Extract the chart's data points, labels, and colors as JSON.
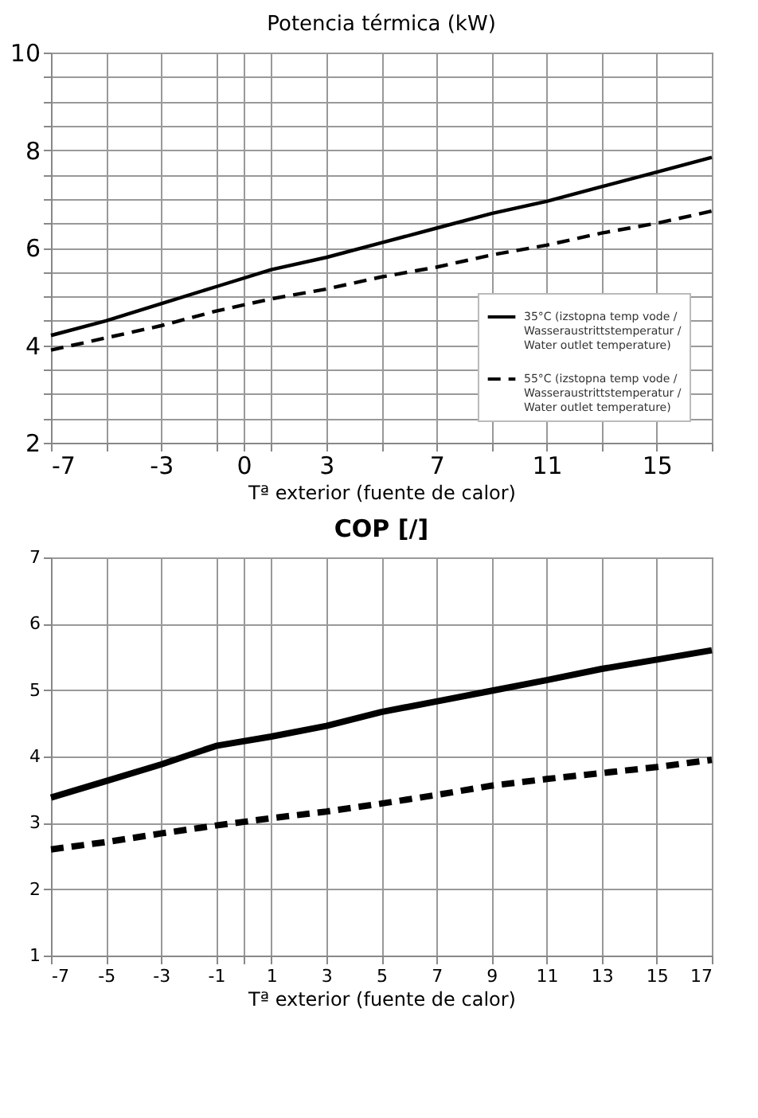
{
  "chart_data": [
    {
      "type": "line",
      "title": "Potencia térmica (kW)",
      "xlabel": "Tª exterior (fuente de calor)",
      "x": [
        -7,
        -5,
        -3,
        -1,
        1,
        3,
        5,
        7,
        9,
        11,
        13,
        15,
        17
      ],
      "series": [
        {
          "name": "35°C (izstopna temp vode /\nWasseraustrittstemperatur /\nWater outlet temperature)",
          "color": "#000000",
          "line_style": "solid",
          "values": [
            4.2,
            4.5,
            4.85,
            5.2,
            5.55,
            5.8,
            6.1,
            6.4,
            6.7,
            6.95,
            7.25,
            7.55,
            7.85
          ]
        },
        {
          "name": "55°C (izstopna temp vode /\nWasseraustrittstemperatur /\nWater outlet temperature)",
          "color": "#000000",
          "line_style": "dashed",
          "values": [
            3.9,
            4.15,
            4.4,
            4.7,
            4.95,
            5.15,
            5.4,
            5.6,
            5.85,
            6.05,
            6.3,
            6.5,
            6.75
          ]
        }
      ],
      "xlim": [
        -7,
        17
      ],
      "xticks": [
        -7,
        {
          "value": -5,
          "label": null
        },
        -3,
        {
          "value": -1,
          "label": null
        },
        0,
        {
          "value": 1,
          "label": null
        },
        3,
        {
          "value": 5,
          "label": null
        },
        7,
        {
          "value": 9,
          "label": null
        },
        11,
        {
          "value": 13,
          "label": null
        },
        15,
        {
          "value": 17,
          "label": null
        }
      ],
      "ylim": [
        2,
        10
      ],
      "yticks": [
        2,
        {
          "value": 2.5,
          "label": null
        },
        {
          "value": 3,
          "label": null
        },
        {
          "value": 3.5,
          "label": null
        },
        4,
        {
          "value": 4.5,
          "label": null
        },
        {
          "value": 5,
          "label": null
        },
        {
          "value": 5.5,
          "label": null
        },
        6,
        {
          "value": 6.5,
          "label": null
        },
        {
          "value": 7,
          "label": null
        },
        {
          "value": 7.5,
          "label": null
        },
        8,
        {
          "value": 8.5,
          "label": null
        },
        {
          "value": 9,
          "label": null
        },
        {
          "value": 9.5,
          "label": null
        },
        10
      ],
      "grid": true,
      "legend": "bottom right",
      "marker": "none"
    },
    {
      "type": "line",
      "title": "COP [/]",
      "xlabel": "Tª exterior (fuente de calor)",
      "x": [
        -7,
        -5,
        -3,
        -1,
        1,
        3,
        5,
        7,
        9,
        11,
        13,
        15,
        17
      ],
      "series": [
        {
          "color": "#000000",
          "line_style": "solid",
          "values": [
            3.38,
            3.63,
            3.88,
            4.16,
            4.3,
            4.46,
            4.67,
            4.83,
            4.99,
            5.15,
            5.32,
            5.46,
            5.6
          ]
        },
        {
          "color": "#000000",
          "line_style": "dashed",
          "values": [
            2.6,
            2.71,
            2.84,
            2.96,
            3.07,
            3.17,
            3.29,
            3.42,
            3.56,
            3.66,
            3.75,
            3.84,
            3.95
          ]
        }
      ],
      "xlim": [
        -7,
        17
      ],
      "xticks": [
        -7,
        -5,
        -3,
        -1,
        {
          "value": 0,
          "label": null
        },
        1,
        3,
        5,
        7,
        9,
        11,
        13,
        15,
        17
      ],
      "ylim": [
        1,
        7
      ],
      "yticks": [
        1,
        2,
        3,
        4,
        5,
        6,
        7
      ],
      "grid": true,
      "legend": false,
      "marker": "none"
    }
  ]
}
